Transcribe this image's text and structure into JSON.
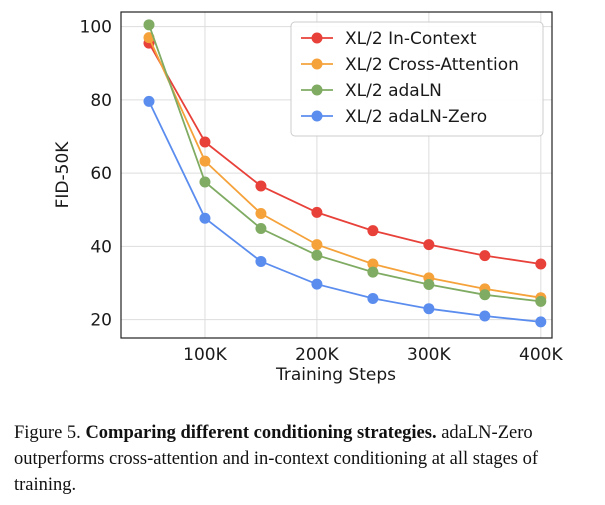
{
  "chart_data": {
    "type": "line",
    "x": [
      50000,
      100000,
      150000,
      200000,
      250000,
      300000,
      350000,
      400000
    ],
    "xlabel": "Training Steps",
    "ylabel": "FID-50K",
    "xlim": [
      25000,
      410000
    ],
    "ylim": [
      15,
      104
    ],
    "xticks": [
      100000,
      200000,
      300000,
      400000
    ],
    "xtick_labels": [
      "100K",
      "200K",
      "300K",
      "400K"
    ],
    "yticks": [
      20,
      40,
      60,
      80,
      100
    ],
    "ytick_labels": [
      "20",
      "40",
      "60",
      "80",
      "100"
    ],
    "grid": true,
    "legend_position": "top-right",
    "series": [
      {
        "name": "XL/2 In-Context",
        "color": "#e8413a",
        "values": [
          95.5,
          68.5,
          56.5,
          49.3,
          44.3,
          40.5,
          37.5,
          35.2
        ]
      },
      {
        "name": "XL/2 Cross-Attention",
        "color": "#f5a23b",
        "values": [
          97.0,
          63.3,
          49.0,
          40.5,
          35.2,
          31.4,
          28.4,
          26.0
        ]
      },
      {
        "name": "XL/2 adaLN",
        "color": "#7fab62",
        "values": [
          100.5,
          57.6,
          44.9,
          37.6,
          33.0,
          29.6,
          26.8,
          25.0
        ]
      },
      {
        "name": "XL/2 adaLN-Zero",
        "color": "#5b8def",
        "values": [
          79.6,
          47.7,
          35.9,
          29.7,
          25.8,
          23.0,
          21.0,
          19.4
        ]
      }
    ]
  },
  "caption": {
    "prefix": "Figure 5. ",
    "bold": "Comparing different conditioning strategies.",
    "rest": " adaLN-Zero outperforms cross-attention and in-context conditioning at all stages of training."
  }
}
